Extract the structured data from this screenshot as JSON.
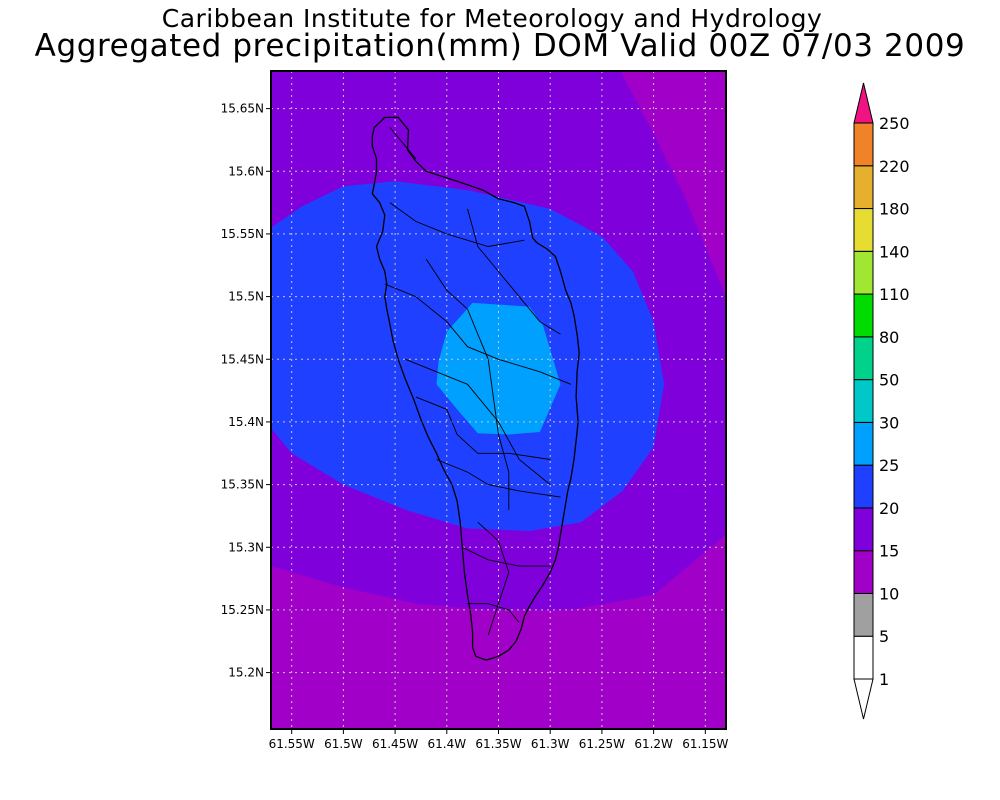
{
  "title": "Caribbean Institute for Meteorology and Hydrology",
  "subtitle": "Aggregated precipitation(mm) DOM Valid 00Z 07/03 2009",
  "map": {
    "region": "Dominica",
    "variable": "Aggregated precipitation",
    "units": "mm",
    "lon_range": [
      -61.57,
      -61.13
    ],
    "lat_range": [
      15.155,
      15.68
    ],
    "grid": true,
    "lon_ticks": [
      {
        "value": -61.55,
        "label": "61.55W"
      },
      {
        "value": -61.5,
        "label": "61.5W"
      },
      {
        "value": -61.45,
        "label": "61.45W"
      },
      {
        "value": -61.4,
        "label": "61.4W"
      },
      {
        "value": -61.35,
        "label": "61.35W"
      },
      {
        "value": -61.3,
        "label": "61.3W"
      },
      {
        "value": -61.25,
        "label": "61.25W"
      },
      {
        "value": -61.2,
        "label": "61.2W"
      },
      {
        "value": -61.15,
        "label": "61.15W"
      }
    ],
    "lat_ticks": [
      {
        "value": 15.65,
        "label": "15.65N"
      },
      {
        "value": 15.6,
        "label": "15.6N"
      },
      {
        "value": 15.55,
        "label": "15.55N"
      },
      {
        "value": 15.5,
        "label": "15.5N"
      },
      {
        "value": 15.45,
        "label": "15.45N"
      },
      {
        "value": 15.4,
        "label": "15.4N"
      },
      {
        "value": 15.35,
        "label": "15.35N"
      },
      {
        "value": 15.3,
        "label": "15.3N"
      },
      {
        "value": 15.25,
        "label": "15.25N"
      },
      {
        "value": 15.2,
        "label": "15.2N"
      }
    ],
    "background_class": {
      "range": "10-15",
      "color": "#8000dc"
    },
    "regions": [
      {
        "class": "5-10",
        "color": "#a000c8",
        "coords": [
          [
            -61.57,
            15.285
          ],
          [
            -61.5,
            15.268
          ],
          [
            -61.43,
            15.255
          ],
          [
            -61.36,
            15.25
          ],
          [
            -61.28,
            15.25
          ],
          [
            -61.2,
            15.262
          ],
          [
            -61.13,
            15.31
          ],
          [
            -61.13,
            15.155
          ],
          [
            -61.57,
            15.155
          ]
        ]
      },
      {
        "class": "5-10",
        "color": "#a000c8",
        "coords": [
          [
            -61.232,
            15.68
          ],
          [
            -61.13,
            15.68
          ],
          [
            -61.13,
            15.5
          ],
          [
            -61.17,
            15.58
          ],
          [
            -61.2,
            15.63
          ]
        ]
      },
      {
        "class": "15-20",
        "color": "#2040ff",
        "coords": [
          [
            -61.57,
            15.555
          ],
          [
            -61.54,
            15.572
          ],
          [
            -61.5,
            15.588
          ],
          [
            -61.45,
            15.592
          ],
          [
            -61.38,
            15.585
          ],
          [
            -61.3,
            15.57
          ],
          [
            -61.25,
            15.548
          ],
          [
            -61.22,
            15.52
          ],
          [
            -61.2,
            15.48
          ],
          [
            -61.19,
            15.43
          ],
          [
            -61.2,
            15.38
          ],
          [
            -61.23,
            15.345
          ],
          [
            -61.27,
            15.32
          ],
          [
            -61.32,
            15.313
          ],
          [
            -61.38,
            15.315
          ],
          [
            -61.44,
            15.33
          ],
          [
            -61.5,
            15.35
          ],
          [
            -61.55,
            15.375
          ],
          [
            -61.57,
            15.395
          ]
        ]
      },
      {
        "class": "20-25",
        "color": "#00a0ff",
        "coords": [
          [
            -61.4,
            15.472
          ],
          [
            -61.375,
            15.495
          ],
          [
            -61.32,
            15.492
          ],
          [
            -61.307,
            15.477
          ],
          [
            -61.29,
            15.43
          ],
          [
            -61.31,
            15.392
          ],
          [
            -61.34,
            15.39
          ],
          [
            -61.37,
            15.391
          ],
          [
            -61.39,
            15.41
          ],
          [
            -61.41,
            15.43
          ],
          [
            -61.408,
            15.448
          ]
        ]
      }
    ],
    "island_outline": [
      [
        -61.47,
        15.635
      ],
      [
        -61.46,
        15.643
      ],
      [
        -61.447,
        15.643
      ],
      [
        -61.437,
        15.633
      ],
      [
        -61.438,
        15.617
      ],
      [
        -61.43,
        15.608
      ],
      [
        -61.42,
        15.6
      ],
      [
        -61.39,
        15.592
      ],
      [
        -61.365,
        15.585
      ],
      [
        -61.35,
        15.578
      ],
      [
        -61.335,
        15.575
      ],
      [
        -61.325,
        15.572
      ],
      [
        -61.32,
        15.56
      ],
      [
        -61.317,
        15.547
      ],
      [
        -61.313,
        15.543
      ],
      [
        -61.303,
        15.538
      ],
      [
        -61.295,
        15.532
      ],
      [
        -61.29,
        15.52
      ],
      [
        -61.285,
        15.505
      ],
      [
        -61.28,
        15.495
      ],
      [
        -61.277,
        15.485
      ],
      [
        -61.274,
        15.47
      ],
      [
        -61.272,
        15.455
      ],
      [
        -61.274,
        15.44
      ],
      [
        -61.275,
        15.42
      ],
      [
        -61.273,
        15.4
      ],
      [
        -61.275,
        15.385
      ],
      [
        -61.277,
        15.37
      ],
      [
        -61.28,
        15.355
      ],
      [
        -61.283,
        15.345
      ],
      [
        -61.285,
        15.335
      ],
      [
        -61.287,
        15.325
      ],
      [
        -61.29,
        15.31
      ],
      [
        -61.292,
        15.3
      ],
      [
        -61.295,
        15.29
      ],
      [
        -61.3,
        15.28
      ],
      [
        -61.307,
        15.27
      ],
      [
        -61.315,
        15.26
      ],
      [
        -61.32,
        15.253
      ],
      [
        -61.325,
        15.245
      ],
      [
        -61.328,
        15.235
      ],
      [
        -61.333,
        15.225
      ],
      [
        -61.34,
        15.218
      ],
      [
        -61.35,
        15.213
      ],
      [
        -61.362,
        15.21
      ],
      [
        -61.372,
        15.213
      ],
      [
        -61.375,
        15.22
      ],
      [
        -61.375,
        15.232
      ],
      [
        -61.377,
        15.247
      ],
      [
        -61.38,
        15.262
      ],
      [
        -61.383,
        15.28
      ],
      [
        -61.385,
        15.3
      ],
      [
        -61.387,
        15.32
      ],
      [
        -61.39,
        15.337
      ],
      [
        -61.395,
        15.35
      ],
      [
        -61.403,
        15.362
      ],
      [
        -61.41,
        15.375
      ],
      [
        -61.418,
        15.388
      ],
      [
        -61.425,
        15.402
      ],
      [
        -61.432,
        15.418
      ],
      [
        -61.44,
        15.434
      ],
      [
        -61.447,
        15.45
      ],
      [
        -61.452,
        15.465
      ],
      [
        -61.455,
        15.478
      ],
      [
        -61.458,
        15.49
      ],
      [
        -61.46,
        15.5
      ],
      [
        -61.458,
        15.51
      ],
      [
        -61.46,
        15.52
      ],
      [
        -61.465,
        15.53
      ],
      [
        -61.468,
        15.54
      ],
      [
        -61.462,
        15.552
      ],
      [
        -61.46,
        15.565
      ],
      [
        -61.465,
        15.575
      ],
      [
        -61.472,
        15.582
      ],
      [
        -61.47,
        15.59
      ],
      [
        -61.468,
        15.6
      ],
      [
        -61.468,
        15.61
      ],
      [
        -61.472,
        15.62
      ],
      [
        -61.472,
        15.628
      ]
    ],
    "rivers": [
      [
        [
          -61.455,
          15.635
        ],
        [
          -61.44,
          15.62
        ],
        [
          -61.43,
          15.61
        ]
      ],
      [
        [
          -61.455,
          15.575
        ],
        [
          -61.43,
          15.56
        ],
        [
          -61.4,
          15.55
        ],
        [
          -61.36,
          15.54
        ],
        [
          -61.325,
          15.545
        ]
      ],
      [
        [
          -61.46,
          15.51
        ],
        [
          -61.43,
          15.5
        ],
        [
          -61.4,
          15.48
        ],
        [
          -61.38,
          15.46
        ],
        [
          -61.35,
          15.45
        ],
        [
          -61.31,
          15.44
        ],
        [
          -61.28,
          15.43
        ]
      ],
      [
        [
          -61.44,
          15.45
        ],
        [
          -61.41,
          15.44
        ],
        [
          -61.38,
          15.43
        ],
        [
          -61.35,
          15.4
        ],
        [
          -61.33,
          15.37
        ],
        [
          -61.3,
          15.35
        ]
      ],
      [
        [
          -61.42,
          15.53
        ],
        [
          -61.4,
          15.505
        ],
        [
          -61.38,
          15.49
        ],
        [
          -61.37,
          15.47
        ],
        [
          -61.36,
          15.45
        ],
        [
          -61.355,
          15.42
        ],
        [
          -61.35,
          15.39
        ],
        [
          -61.34,
          15.36
        ],
        [
          -61.34,
          15.33
        ]
      ],
      [
        [
          -61.38,
          15.57
        ],
        [
          -61.37,
          15.54
        ],
        [
          -61.35,
          15.52
        ],
        [
          -61.33,
          15.5
        ],
        [
          -61.31,
          15.48
        ],
        [
          -61.29,
          15.47
        ]
      ],
      [
        [
          -61.41,
          15.37
        ],
        [
          -61.38,
          15.36
        ],
        [
          -61.36,
          15.35
        ],
        [
          -61.33,
          15.345
        ],
        [
          -61.29,
          15.34
        ]
      ],
      [
        [
          -61.385,
          15.3
        ],
        [
          -61.36,
          15.29
        ],
        [
          -61.33,
          15.285
        ],
        [
          -61.3,
          15.285
        ]
      ],
      [
        [
          -61.38,
          15.255
        ],
        [
          -61.36,
          15.255
        ],
        [
          -61.34,
          15.25
        ],
        [
          -61.33,
          15.24
        ]
      ],
      [
        [
          -61.37,
          15.32
        ],
        [
          -61.35,
          15.305
        ],
        [
          -61.34,
          15.28
        ],
        [
          -61.35,
          15.255
        ],
        [
          -61.36,
          15.23
        ]
      ],
      [
        [
          -61.43,
          15.42
        ],
        [
          -61.4,
          15.41
        ],
        [
          -61.39,
          15.39
        ],
        [
          -61.37,
          15.375
        ],
        [
          -61.34,
          15.375
        ],
        [
          -61.3,
          15.37
        ]
      ]
    ]
  },
  "colorbar": {
    "bottom_triangle_color": "#ffffff",
    "top_triangle_color": "#f01482",
    "levels": [
      {
        "label": "1",
        "color": "#ffffff"
      },
      {
        "label": "5",
        "color": "#a0a0a0"
      },
      {
        "label": "10",
        "color": "#a000c8"
      },
      {
        "label": "15",
        "color": "#8000dc"
      },
      {
        "label": "20",
        "color": "#2040ff"
      },
      {
        "label": "25",
        "color": "#00a0ff"
      },
      {
        "label": "30",
        "color": "#00c8c8"
      },
      {
        "label": "50",
        "color": "#00d28c"
      },
      {
        "label": "80",
        "color": "#00dc00"
      },
      {
        "label": "110",
        "color": "#a0e632"
      },
      {
        "label": "140",
        "color": "#e6dc32"
      },
      {
        "label": "180",
        "color": "#e6af2d"
      },
      {
        "label": "220",
        "color": "#f08228"
      },
      {
        "label": "250",
        "color": "#fa3c3c"
      }
    ]
  }
}
